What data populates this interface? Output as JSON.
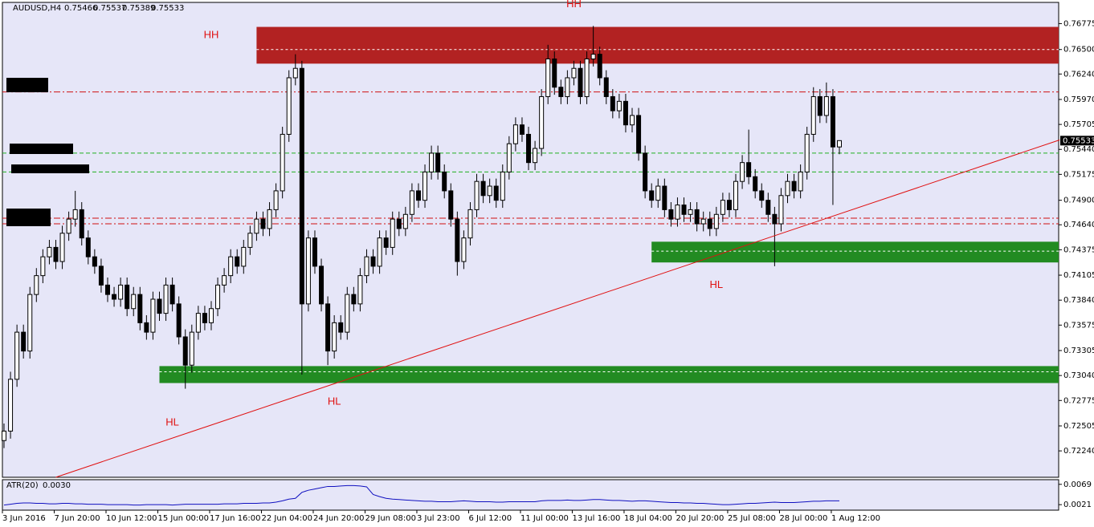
{
  "chart_data": {
    "type": "candlestick",
    "symbol": "AUDUSD,H4",
    "bull_color": "#ffffff",
    "bear_color": "#000000",
    "categories": [
      "3 Jun 2016",
      null,
      null,
      null,
      null,
      null,
      null,
      null,
      "7 Jun 20:00",
      null,
      null,
      null,
      null,
      null,
      null,
      null,
      "10 Jun 12:00",
      null,
      null,
      null,
      null,
      null,
      null,
      null,
      "15 Jun 00:00",
      null,
      null,
      null,
      null,
      null,
      null,
      null,
      "17 Jun 16:00",
      null,
      null,
      null,
      null,
      null,
      null,
      null,
      "22 Jun 04:00",
      null,
      null,
      null,
      null,
      null,
      null,
      null,
      "24 Jun 20:00",
      null,
      null,
      null,
      null,
      null,
      null,
      null,
      "29 Jun 08:00",
      null,
      null,
      null,
      null,
      null,
      null,
      null,
      "3 Jul 23:00",
      null,
      null,
      null,
      null,
      null,
      null,
      null,
      "6 Jul 12:00",
      null,
      null,
      null,
      null,
      null,
      null,
      null,
      "11 Jul 00:00",
      null,
      null,
      null,
      null,
      null,
      null,
      null,
      "13 Jul 16:00",
      null,
      null,
      null,
      null,
      null,
      null,
      null,
      "18 Jul 04:00",
      null,
      null,
      null,
      null,
      null,
      null,
      null,
      "20 Jul 20:00",
      null,
      null,
      null,
      null,
      null,
      null,
      null,
      "25 Jul 08:00",
      null,
      null,
      null,
      null,
      null,
      null,
      null,
      "28 Jul 00:00",
      null,
      null,
      null,
      null,
      null,
      null,
      null,
      "1 Aug 12:00",
      null
    ],
    "open": [
      0.7235,
      0.7245,
      0.73,
      0.735,
      0.733,
      0.739,
      0.741,
      0.743,
      0.744,
      0.7425,
      0.7455,
      0.747,
      0.748,
      0.745,
      0.743,
      0.742,
      0.74,
      0.739,
      0.7385,
      0.74,
      0.7375,
      0.739,
      0.736,
      0.735,
      0.7385,
      0.737,
      0.74,
      0.738,
      0.7345,
      0.7315,
      0.735,
      0.737,
      0.736,
      0.7375,
      0.74,
      0.741,
      0.743,
      0.742,
      0.744,
      0.7455,
      0.747,
      0.746,
      0.748,
      0.75,
      0.756,
      0.762,
      0.763,
      0.738,
      0.745,
      0.742,
      0.738,
      0.733,
      0.736,
      0.735,
      0.739,
      0.738,
      0.741,
      0.743,
      0.742,
      0.745,
      0.744,
      0.747,
      0.746,
      0.7475,
      0.75,
      0.749,
      0.752,
      0.754,
      0.752,
      0.75,
      0.747,
      0.7425,
      0.745,
      0.748,
      0.751,
      0.7495,
      0.7505,
      0.749,
      0.752,
      0.755,
      0.757,
      0.756,
      0.753,
      0.7545,
      0.76,
      0.764,
      0.761,
      0.76,
      0.762,
      0.763,
      0.76,
      0.764,
      0.7645,
      0.762,
      0.76,
      0.7585,
      0.7595,
      0.757,
      0.758,
      0.754,
      0.75,
      0.749,
      0.7505,
      0.748,
      0.747,
      0.7485,
      0.7475,
      0.748,
      0.7465,
      0.747,
      0.746,
      0.7475,
      0.749,
      0.748,
      0.751,
      0.753,
      0.7515,
      0.75,
      0.749,
      0.7475,
      0.7465,
      0.7495,
      0.751,
      0.75,
      0.752,
      0.756,
      0.76,
      0.758,
      0.76,
      0.75466
    ],
    "high": [
      0.7253,
      0.7308,
      0.7358,
      0.7358,
      0.7398,
      0.7418,
      0.7438,
      0.7448,
      0.7448,
      0.7463,
      0.7478,
      0.75,
      0.7488,
      0.7458,
      0.7438,
      0.7428,
      0.7408,
      0.7398,
      0.7408,
      0.7408,
      0.7398,
      0.7398,
      0.7368,
      0.7393,
      0.7393,
      0.7408,
      0.7408,
      0.7388,
      0.7353,
      0.7358,
      0.7378,
      0.7378,
      0.7383,
      0.7408,
      0.7418,
      0.7438,
      0.7438,
      0.7448,
      0.7463,
      0.7478,
      0.7478,
      0.7488,
      0.7508,
      0.7568,
      0.7628,
      0.7645,
      0.7638,
      0.7458,
      0.7458,
      0.7428,
      0.7388,
      0.7368,
      0.7368,
      0.7398,
      0.7398,
      0.7418,
      0.7438,
      0.7438,
      0.7458,
      0.7458,
      0.7478,
      0.7478,
      0.7483,
      0.7508,
      0.7508,
      0.7528,
      0.7548,
      0.7548,
      0.7528,
      0.7508,
      0.7478,
      0.7458,
      0.7488,
      0.7518,
      0.7518,
      0.7513,
      0.7513,
      0.7528,
      0.7558,
      0.7578,
      0.7578,
      0.7568,
      0.7553,
      0.7608,
      0.7655,
      0.7648,
      0.7618,
      0.7628,
      0.7638,
      0.7638,
      0.7648,
      0.7675,
      0.7653,
      0.7628,
      0.7608,
      0.7603,
      0.7603,
      0.7588,
      0.7588,
      0.7548,
      0.7508,
      0.7513,
      0.7513,
      0.7488,
      0.7493,
      0.7493,
      0.7488,
      0.7488,
      0.7478,
      0.7478,
      0.7483,
      0.7498,
      0.7498,
      0.7518,
      0.7538,
      0.7565,
      0.7523,
      0.7508,
      0.7498,
      0.7483,
      0.7503,
      0.7518,
      0.7518,
      0.7528,
      0.7568,
      0.761,
      0.7608,
      0.7615,
      0.7608,
      0.75537
    ],
    "low": [
      0.7227,
      0.7237,
      0.7292,
      0.7322,
      0.7322,
      0.7382,
      0.7402,
      0.7422,
      0.7417,
      0.7417,
      0.7447,
      0.7462,
      0.7442,
      0.7422,
      0.7412,
      0.7392,
      0.7382,
      0.7377,
      0.7377,
      0.7367,
      0.7367,
      0.7352,
      0.7342,
      0.7342,
      0.7362,
      0.7362,
      0.7372,
      0.7337,
      0.729,
      0.7307,
      0.7342,
      0.7352,
      0.7352,
      0.7367,
      0.7392,
      0.7402,
      0.7412,
      0.7412,
      0.7432,
      0.7447,
      0.7452,
      0.7452,
      0.7472,
      0.7492,
      0.7552,
      0.7612,
      0.7305,
      0.7372,
      0.7412,
      0.7372,
      0.7315,
      0.7322,
      0.7342,
      0.7342,
      0.7372,
      0.7372,
      0.7402,
      0.7412,
      0.7412,
      0.7432,
      0.7432,
      0.7452,
      0.7452,
      0.7467,
      0.7482,
      0.7482,
      0.7512,
      0.7512,
      0.7492,
      0.7462,
      0.741,
      0.7417,
      0.7442,
      0.7472,
      0.7487,
      0.7487,
      0.7482,
      0.7482,
      0.7512,
      0.7542,
      0.7552,
      0.7522,
      0.7522,
      0.7537,
      0.7592,
      0.7602,
      0.7592,
      0.7592,
      0.7612,
      0.7592,
      0.7592,
      0.7632,
      0.7612,
      0.7592,
      0.7577,
      0.7577,
      0.7562,
      0.7562,
      0.7532,
      0.7492,
      0.7482,
      0.7482,
      0.7472,
      0.7462,
      0.7462,
      0.7467,
      0.7467,
      0.7457,
      0.7457,
      0.7452,
      0.7452,
      0.7467,
      0.7472,
      0.7472,
      0.7502,
      0.7507,
      0.7492,
      0.7482,
      0.7467,
      0.742,
      0.7457,
      0.7487,
      0.7492,
      0.7492,
      0.7512,
      0.7552,
      0.7572,
      0.7572,
      0.7485,
      0.75389
    ],
    "close": [
      0.7245,
      0.73,
      0.735,
      0.733,
      0.739,
      0.741,
      0.743,
      0.744,
      0.7425,
      0.7455,
      0.747,
      0.748,
      0.745,
      0.743,
      0.742,
      0.74,
      0.739,
      0.7385,
      0.74,
      0.7375,
      0.739,
      0.736,
      0.735,
      0.7385,
      0.737,
      0.74,
      0.738,
      0.7345,
      0.7315,
      0.735,
      0.737,
      0.736,
      0.7375,
      0.74,
      0.741,
      0.743,
      0.742,
      0.744,
      0.7455,
      0.747,
      0.746,
      0.748,
      0.75,
      0.756,
      0.762,
      0.763,
      0.738,
      0.745,
      0.742,
      0.738,
      0.733,
      0.736,
      0.735,
      0.739,
      0.738,
      0.741,
      0.743,
      0.742,
      0.745,
      0.744,
      0.747,
      0.746,
      0.7475,
      0.75,
      0.749,
      0.752,
      0.754,
      0.752,
      0.75,
      0.747,
      0.7425,
      0.745,
      0.748,
      0.751,
      0.7495,
      0.7505,
      0.749,
      0.752,
      0.755,
      0.757,
      0.756,
      0.753,
      0.7545,
      0.76,
      0.764,
      0.761,
      0.76,
      0.762,
      0.763,
      0.76,
      0.764,
      0.7645,
      0.762,
      0.76,
      0.7585,
      0.7595,
      0.757,
      0.758,
      0.754,
      0.75,
      0.749,
      0.7505,
      0.748,
      0.747,
      0.7485,
      0.7475,
      0.748,
      0.7465,
      0.747,
      0.746,
      0.7475,
      0.749,
      0.748,
      0.751,
      0.753,
      0.7515,
      0.75,
      0.749,
      0.7475,
      0.7465,
      0.7495,
      0.751,
      0.75,
      0.752,
      0.756,
      0.76,
      0.758,
      0.76,
      0.75466,
      0.75533
    ],
    "ylim": [
      0.7196,
      0.77
    ],
    "yticks": [
      {
        "value": 0.76775,
        "label": "0.76775"
      },
      {
        "value": 0.765,
        "label": "0.76500"
      },
      {
        "value": 0.7624,
        "label": "0.76240"
      },
      {
        "value": 0.7597,
        "label": "0.75970"
      },
      {
        "value": 0.75705,
        "label": "0.75705"
      },
      {
        "value": 0.7544,
        "label": "0.75440"
      },
      {
        "value": 0.75175,
        "label": "0.75175"
      },
      {
        "value": 0.749,
        "label": "0.74900"
      },
      {
        "value": 0.7464,
        "label": "0.74640"
      },
      {
        "value": 0.74375,
        "label": "0.74375"
      },
      {
        "value": 0.74105,
        "label": "0.74105"
      },
      {
        "value": 0.7384,
        "label": "0.73840"
      },
      {
        "value": 0.73575,
        "label": "0.73575"
      },
      {
        "value": 0.73305,
        "label": "0.73305"
      },
      {
        "value": 0.7304,
        "label": "0.73040"
      },
      {
        "value": 0.72775,
        "label": "0.72775"
      },
      {
        "value": 0.72505,
        "label": "0.72505"
      },
      {
        "value": 0.7224,
        "label": "0.72240"
      }
    ],
    "zones": [
      {
        "low": 0.7635,
        "high": 0.7674,
        "start": 39,
        "color": "#b22222",
        "mid": 0.765
      },
      {
        "low": 0.7424,
        "high": 0.7446,
        "start": 100,
        "color": "#228b22",
        "mid": 0.7436
      },
      {
        "low": 0.7296,
        "high": 0.7314,
        "start": 24,
        "color": "#228b22",
        "mid": 0.7308
      }
    ],
    "levels": [
      {
        "value": 0.7605,
        "color": "#d01010",
        "dash": "8 3 2 3"
      },
      {
        "value": 0.7471,
        "color": "#d01010",
        "dash": "8 3 2 3"
      },
      {
        "value": 0.7465,
        "color": "#d01010",
        "dash": "8 3 2 3"
      },
      {
        "value": 0.754,
        "color": "#20b020",
        "dash": "5 3"
      },
      {
        "value": 0.752,
        "color": "#20b020",
        "dash": "5 3"
      }
    ],
    "trendline": {
      "color": "#e01010",
      "points": [
        {
          "x": 8,
          "y": 0.7196
        },
        {
          "x": 163,
          "y": 0.7554
        }
      ]
    },
    "annotations": [
      {
        "label": "HH",
        "index": 88,
        "price": 0.7698
      },
      {
        "label": "HH",
        "index": 32,
        "price": 0.7665
      },
      {
        "label": "HL",
        "index": 26,
        "price": 0.7254
      },
      {
        "label": "HL",
        "index": 51,
        "price": 0.7276
      },
      {
        "label": "HL",
        "index": 110,
        "price": 0.74
      }
    ],
    "atr": {
      "name": "ATR(20)",
      "current_label": "0.0030",
      "color": "#1010c0",
      "ylim": [
        0.0008,
        0.008
      ],
      "yticks": [
        {
          "value": 0.0069,
          "label": "0.0069"
        },
        {
          "value": 0.0021,
          "label": "0.0021"
        }
      ],
      "values": [
        0.002,
        0.0022,
        0.0024,
        0.0025,
        0.0025,
        0.0024,
        0.0024,
        0.0023,
        0.0023,
        0.0024,
        0.0024,
        0.0023,
        0.0023,
        0.0022,
        0.0022,
        0.0022,
        0.0021,
        0.0021,
        0.0021,
        0.0021,
        0.002,
        0.002,
        0.0021,
        0.0021,
        0.0021,
        0.0021,
        0.002,
        0.0021,
        0.0022,
        0.0022,
        0.0022,
        0.0022,
        0.0022,
        0.0022,
        0.0023,
        0.0023,
        0.0023,
        0.0024,
        0.0024,
        0.0024,
        0.0025,
        0.0025,
        0.0027,
        0.003,
        0.0034,
        0.0036,
        0.005,
        0.0055,
        0.0058,
        0.0061,
        0.0064,
        0.0064,
        0.0065,
        0.0066,
        0.0066,
        0.0065,
        0.0063,
        0.0045,
        0.004,
        0.0036,
        0.0034,
        0.0033,
        0.0032,
        0.0031,
        0.003,
        0.0029,
        0.0029,
        0.0028,
        0.0028,
        0.0028,
        0.0029,
        0.003,
        0.0029,
        0.0028,
        0.0028,
        0.0028,
        0.0027,
        0.0027,
        0.0028,
        0.0028,
        0.0028,
        0.0028,
        0.0028,
        0.003,
        0.0031,
        0.0031,
        0.0031,
        0.0032,
        0.0031,
        0.0031,
        0.0032,
        0.0033,
        0.0033,
        0.0032,
        0.0031,
        0.0031,
        0.003,
        0.0029,
        0.003,
        0.003,
        0.0029,
        0.0028,
        0.0027,
        0.0026,
        0.0026,
        0.0025,
        0.0025,
        0.0024,
        0.0024,
        0.0023,
        0.0022,
        0.0021,
        0.0021,
        0.0022,
        0.0023,
        0.0024,
        0.0024,
        0.0025,
        0.0026,
        0.0027,
        0.0026,
        0.0026,
        0.0026,
        0.0027,
        0.0028,
        0.0029,
        0.0029,
        0.003,
        0.003,
        0.003
      ]
    }
  }
}
